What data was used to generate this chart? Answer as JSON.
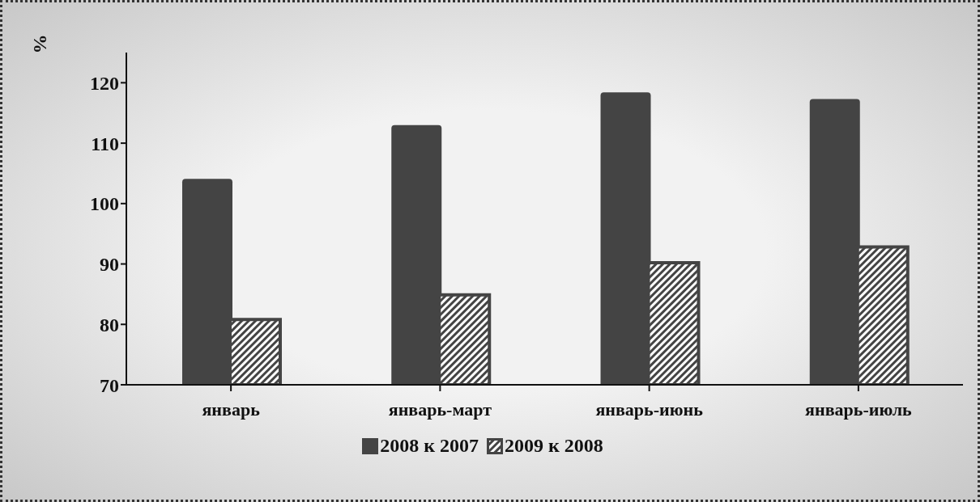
{
  "chart_data": {
    "type": "bar",
    "ylabel": "%",
    "categories": [
      "январь",
      "январь-март",
      "январь-июнь",
      "январь-июль"
    ],
    "series": [
      {
        "name": "2008 к 2007",
        "color": "#444444",
        "values": [
          104.1,
          113,
          118.4,
          117.3
        ]
      },
      {
        "name": "2009 к 2008",
        "color": "#444444",
        "values": [
          80.8,
          84.9,
          90.2,
          92.8
        ]
      }
    ],
    "ylim": [
      70,
      125
    ],
    "yticks": [
      70,
      80,
      90,
      100,
      110,
      120
    ],
    "grid": false,
    "legend": "bottom"
  }
}
